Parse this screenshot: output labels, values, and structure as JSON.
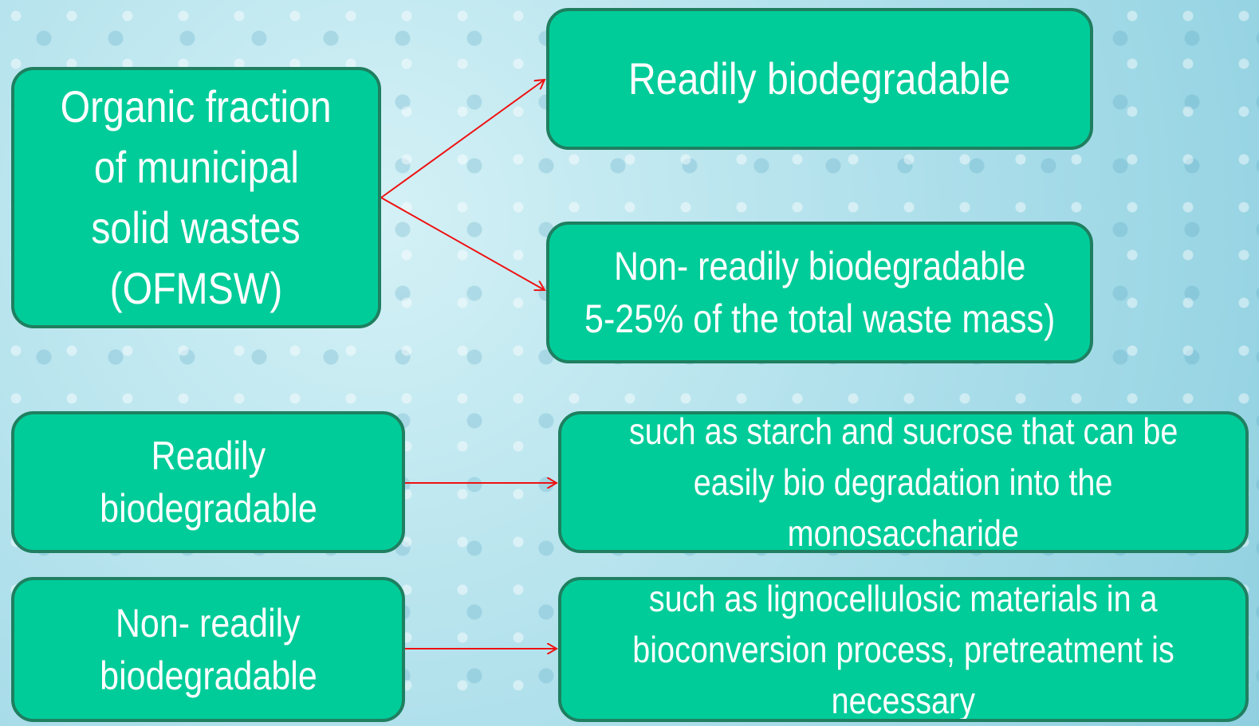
{
  "nodes": [
    {
      "lines": [
        "Organic fraction",
        "of municipal",
        "solid wastes",
        "(OFMSW)"
      ]
    },
    {
      "lines": [
        "Readily biodegradable"
      ]
    },
    {
      "lines": [
        "Non- readily biodegradable",
        "5-25% of the total waste mass)"
      ]
    },
    {
      "lines": [
        "Readily",
        "biodegradable"
      ]
    },
    {
      "lines": [
        "such as starch and sucrose that can be",
        "easily bio degradation into the",
        "monosaccharide"
      ]
    },
    {
      "lines": [
        "Non- readily",
        "biodegradable"
      ]
    },
    {
      "lines": [
        "such as lignocellulosic materials in a",
        "bioconversion process, pretreatment is",
        "necessary"
      ]
    }
  ]
}
